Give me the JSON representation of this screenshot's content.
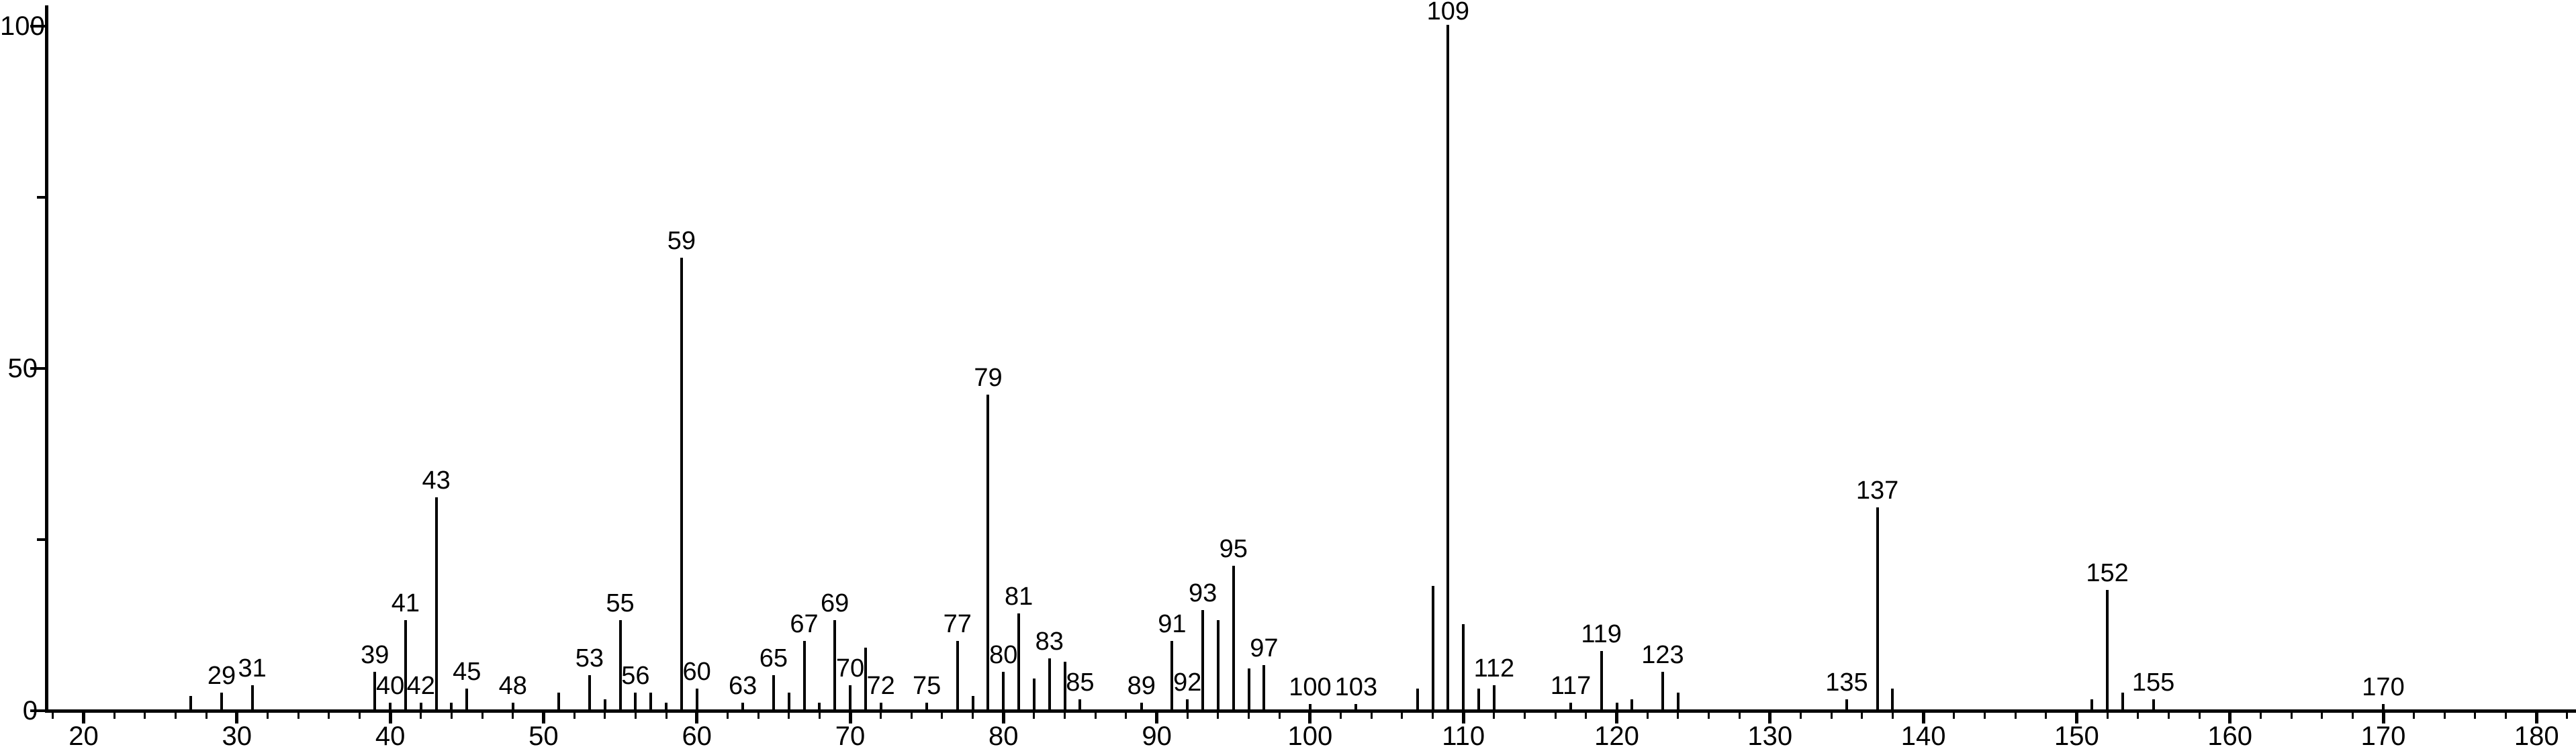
{
  "chart_data": {
    "type": "bar",
    "subtype": "mass-spectrum-stick-plot",
    "title": "",
    "xlabel": "",
    "ylabel": "",
    "xlim": [
      17.5,
      182.6
    ],
    "ylim": [
      0,
      100
    ],
    "grid": false,
    "legend": false,
    "bar_color": "#000000",
    "background_color": "#ffffff",
    "x_major_ticks": [
      20,
      30,
      40,
      50,
      60,
      70,
      80,
      90,
      100,
      110,
      120,
      130,
      140,
      150,
      160,
      170,
      180
    ],
    "x_minor_tick_range": [
      18,
      182
    ],
    "x_minor_tick_step": 2,
    "y_major_ticks": [
      0,
      50,
      100
    ],
    "y_minor_ticks": [
      25,
      75
    ],
    "peaks": [
      {
        "mz": 27,
        "intensity": 2,
        "label": ""
      },
      {
        "mz": 29,
        "intensity": 2.5,
        "label": "29"
      },
      {
        "mz": 31,
        "intensity": 3.5,
        "label": "31"
      },
      {
        "mz": 39,
        "intensity": 5.5,
        "label": "39"
      },
      {
        "mz": 40,
        "intensity": 1,
        "label": "40"
      },
      {
        "mz": 41,
        "intensity": 13,
        "label": "41"
      },
      {
        "mz": 42,
        "intensity": 1,
        "label": "42"
      },
      {
        "mz": 43,
        "intensity": 31,
        "label": "43"
      },
      {
        "mz": 44,
        "intensity": 1,
        "label": ""
      },
      {
        "mz": 45,
        "intensity": 3,
        "label": "45"
      },
      {
        "mz": 48,
        "intensity": 1,
        "label": "48"
      },
      {
        "mz": 51,
        "intensity": 2.5,
        "label": ""
      },
      {
        "mz": 53,
        "intensity": 5,
        "label": "53"
      },
      {
        "mz": 54,
        "intensity": 1.5,
        "label": ""
      },
      {
        "mz": 55,
        "intensity": 13,
        "label": "55"
      },
      {
        "mz": 56,
        "intensity": 2.5,
        "label": "56"
      },
      {
        "mz": 57,
        "intensity": 2.5,
        "label": ""
      },
      {
        "mz": 58,
        "intensity": 1,
        "label": ""
      },
      {
        "mz": 59,
        "intensity": 66,
        "label": "59"
      },
      {
        "mz": 60,
        "intensity": 3,
        "label": "60"
      },
      {
        "mz": 63,
        "intensity": 1,
        "label": "63"
      },
      {
        "mz": 65,
        "intensity": 5,
        "label": "65"
      },
      {
        "mz": 66,
        "intensity": 2.5,
        "label": ""
      },
      {
        "mz": 67,
        "intensity": 10,
        "label": "67"
      },
      {
        "mz": 68,
        "intensity": 1,
        "label": ""
      },
      {
        "mz": 69,
        "intensity": 13,
        "label": "69"
      },
      {
        "mz": 70,
        "intensity": 3.5,
        "label": "70"
      },
      {
        "mz": 71,
        "intensity": 9,
        "label": ""
      },
      {
        "mz": 72,
        "intensity": 1,
        "label": "72"
      },
      {
        "mz": 75,
        "intensity": 1,
        "label": "75"
      },
      {
        "mz": 77,
        "intensity": 10,
        "label": "77"
      },
      {
        "mz": 78,
        "intensity": 2,
        "label": ""
      },
      {
        "mz": 79,
        "intensity": 46,
        "label": "79"
      },
      {
        "mz": 80,
        "intensity": 5.5,
        "label": "80"
      },
      {
        "mz": 81,
        "intensity": 14,
        "label": "81"
      },
      {
        "mz": 82,
        "intensity": 4.5,
        "label": ""
      },
      {
        "mz": 83,
        "intensity": 7.5,
        "label": "83"
      },
      {
        "mz": 84,
        "intensity": 7,
        "label": ""
      },
      {
        "mz": 85,
        "intensity": 1.5,
        "label": "85"
      },
      {
        "mz": 89,
        "intensity": 1,
        "label": "89"
      },
      {
        "mz": 91,
        "intensity": 10,
        "label": "91"
      },
      {
        "mz": 92,
        "intensity": 1.5,
        "label": "92"
      },
      {
        "mz": 93,
        "intensity": 14.5,
        "label": "93"
      },
      {
        "mz": 94,
        "intensity": 13,
        "label": ""
      },
      {
        "mz": 95,
        "intensity": 21,
        "label": "95"
      },
      {
        "mz": 96,
        "intensity": 6,
        "label": ""
      },
      {
        "mz": 97,
        "intensity": 6.5,
        "label": "97"
      },
      {
        "mz": 100,
        "intensity": 0.8,
        "label": "100"
      },
      {
        "mz": 103,
        "intensity": 0.8,
        "label": "103"
      },
      {
        "mz": 107,
        "intensity": 3,
        "label": ""
      },
      {
        "mz": 108,
        "intensity": 18,
        "label": ""
      },
      {
        "mz": 109,
        "intensity": 100,
        "label": "109"
      },
      {
        "mz": 110,
        "intensity": 12.5,
        "label": ""
      },
      {
        "mz": 111,
        "intensity": 3,
        "label": ""
      },
      {
        "mz": 112,
        "intensity": 3.5,
        "label": "112"
      },
      {
        "mz": 117,
        "intensity": 1,
        "label": "117"
      },
      {
        "mz": 119,
        "intensity": 8.5,
        "label": "119"
      },
      {
        "mz": 120,
        "intensity": 1,
        "label": ""
      },
      {
        "mz": 121,
        "intensity": 1.5,
        "label": ""
      },
      {
        "mz": 123,
        "intensity": 5.5,
        "label": "123"
      },
      {
        "mz": 124,
        "intensity": 2.5,
        "label": ""
      },
      {
        "mz": 135,
        "intensity": 1.5,
        "label": "135"
      },
      {
        "mz": 137,
        "intensity": 29.5,
        "label": "137"
      },
      {
        "mz": 138,
        "intensity": 3,
        "label": ""
      },
      {
        "mz": 151,
        "intensity": 1.5,
        "label": ""
      },
      {
        "mz": 152,
        "intensity": 17.5,
        "label": "152"
      },
      {
        "mz": 153,
        "intensity": 2.5,
        "label": ""
      },
      {
        "mz": 155,
        "intensity": 1.5,
        "label": "155"
      },
      {
        "mz": 170,
        "intensity": 0.8,
        "label": "170"
      }
    ]
  }
}
